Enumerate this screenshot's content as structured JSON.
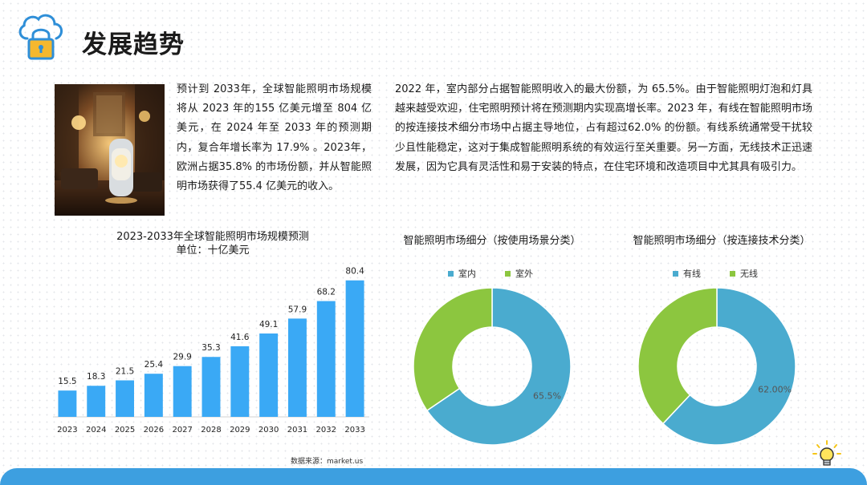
{
  "page": {
    "title": "发展趋势"
  },
  "intro": {
    "left_text": "预计到 2033年，全球智能照明市场规模将从 2023 年的155 亿美元增至 804 亿美元，在 2024 年至 2033 年的预测期内，复合年增长率为 17.9% 。2023年，欧洲占据35.8% 的市场份额，并从智能照明市场获得了55.4 亿美元的收入。",
    "right_text": "2022 年，室内部分占据智能照明收入的最大份额，为 65.5%。由于智能照明灯泡和灯具越来越受欢迎，住宅照明预计将在预测期内实现高增长率。2023 年，有线在智能照明市场的按连接技术细分市场中占据主导地位，占有超过62.0% 的份额。有线系统通常受干扰较少且性能稳定，这对于集成智能照明系统的有效运行至关重要。另一方面，无线技术正迅速发展，因为它具有灵活性和易于安装的特点，在住宅环境和改造项目中尤其具有吸引力。"
  },
  "source_note": "数据来源：market.us",
  "chart_data": [
    {
      "type": "bar",
      "title": "2023-2033年全球智能照明市场规模预测",
      "subtitle": "单位：十亿美元",
      "categories": [
        "2023",
        "2024",
        "2025",
        "2026",
        "2027",
        "2028",
        "2029",
        "2030",
        "2031",
        "2032",
        "2033"
      ],
      "values": [
        15.5,
        18.3,
        21.5,
        25.4,
        29.9,
        35.3,
        41.6,
        49.1,
        57.9,
        68.2,
        80.4
      ],
      "value_labels": [
        "15.5",
        "18.3",
        "21.5",
        "25.4",
        "29.9",
        "35.3",
        "41.6",
        "49.1",
        "57.9",
        "68.2",
        "80.4"
      ],
      "color": "#3aa9f5",
      "ylim": [
        0,
        85
      ],
      "grid": false
    },
    {
      "type": "pie",
      "title": "智能照明市场细分（按使用场景分类）",
      "legend": "top",
      "slices": [
        {
          "label": "室内",
          "value": 65.5,
          "color": "#4aabcf",
          "display": "65.5%"
        },
        {
          "label": "室外",
          "value": 34.5,
          "color": "#8cc63f",
          "display": ""
        }
      ]
    },
    {
      "type": "pie",
      "title": "智能照明市场细分（按连接技术分类）",
      "legend": "top",
      "slices": [
        {
          "label": "有线",
          "value": 62.0,
          "color": "#4aabcf",
          "display": "62.00%"
        },
        {
          "label": "无线",
          "value": 38.0,
          "color": "#8cc63f",
          "display": ""
        }
      ]
    }
  ],
  "icons": {
    "logo": "cloud-lock-icon",
    "bulb": "lightbulb-icon"
  },
  "colors": {
    "accent": "#3d9fe0",
    "logo_blue": "#2f8fd8",
    "logo_yellow": "#f5b82e"
  }
}
